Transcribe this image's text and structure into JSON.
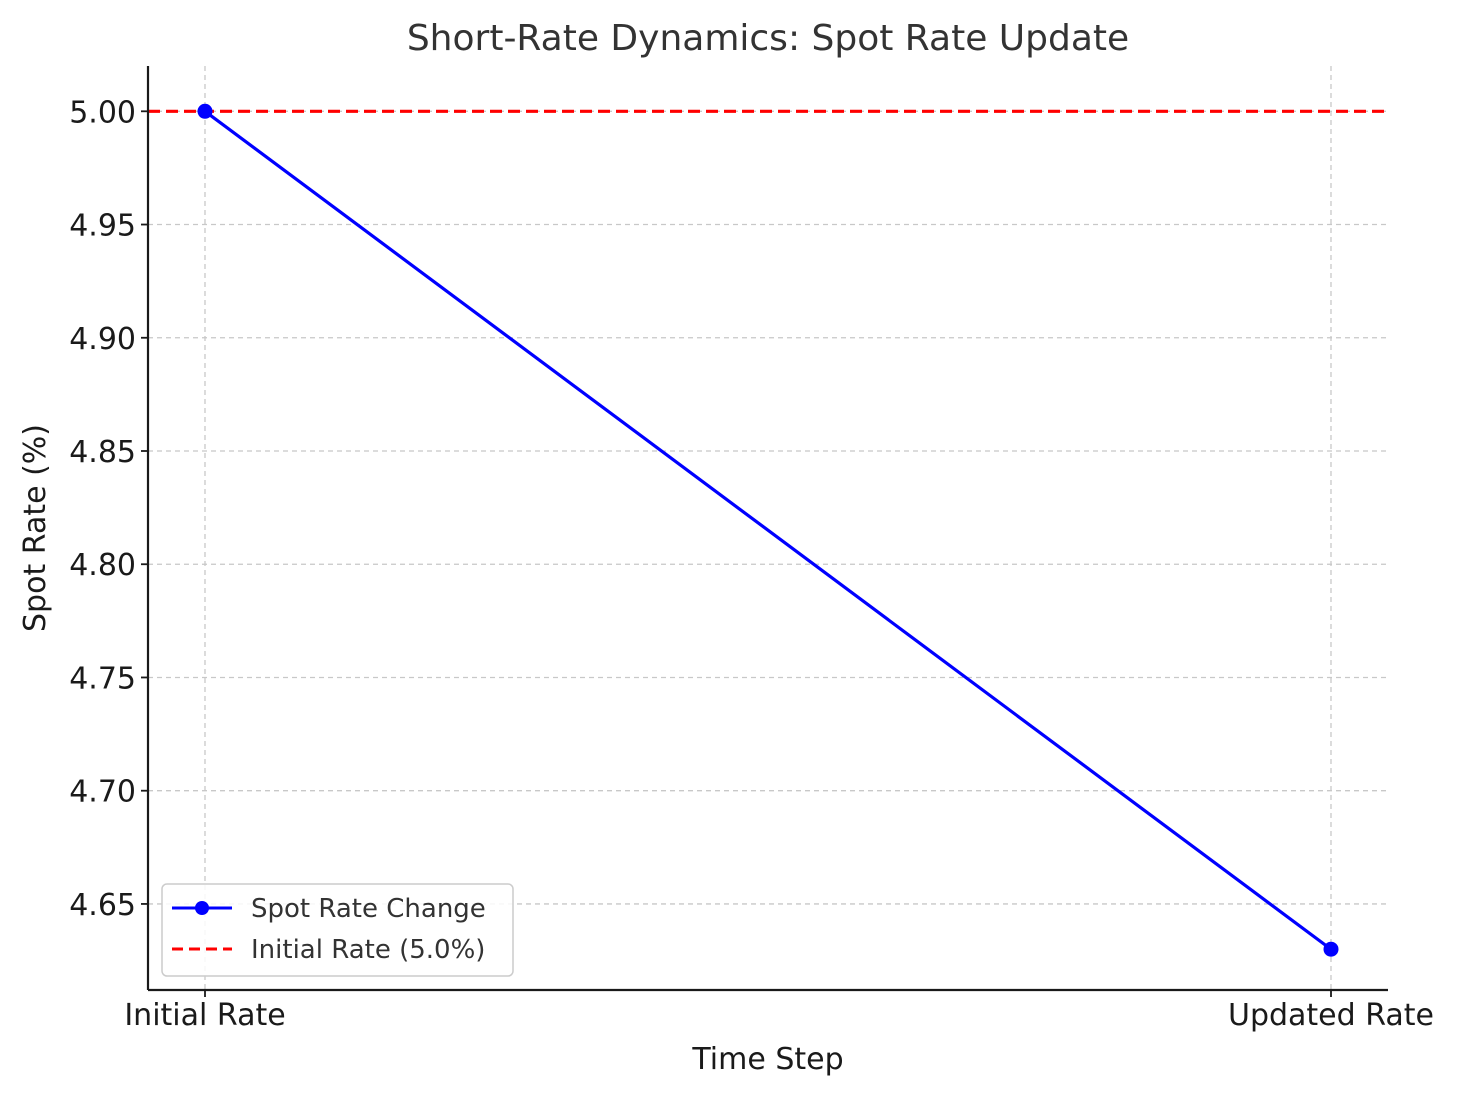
{
  "chart_data": {
    "type": "line",
    "title": "Short-Rate Dynamics: Spot Rate Update",
    "xlabel": "Time Step",
    "ylabel": "Spot Rate (%)",
    "categories": [
      "Initial Rate",
      "Updated Rate"
    ],
    "ylim": [
      4.612,
      5.02
    ],
    "yticks": [
      "4.65",
      "4.70",
      "4.75",
      "4.80",
      "4.85",
      "4.90",
      "4.95",
      "5.00"
    ],
    "grid": true,
    "legend_position": "lower-left",
    "series": [
      {
        "name": "Spot Rate Change",
        "values": [
          5.0,
          4.63
        ],
        "color": "#0000ff",
        "marker": "circle",
        "line_style": "solid"
      }
    ],
    "reference_lines": [
      {
        "name": "Initial Rate (5.0%)",
        "y": 5.0,
        "color": "#ff0000",
        "line_style": "dashed"
      }
    ]
  }
}
